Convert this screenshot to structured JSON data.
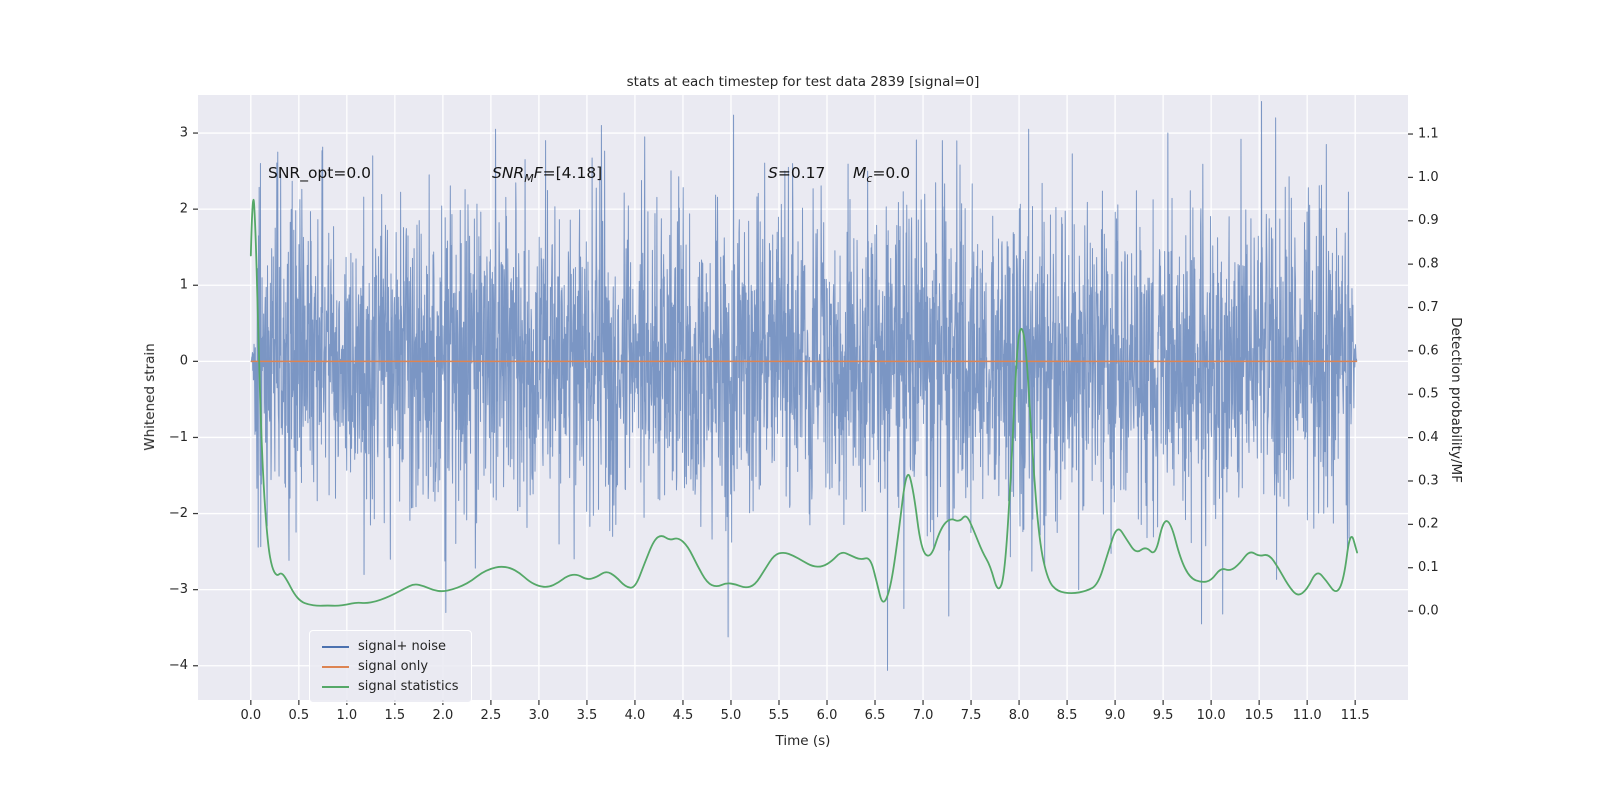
{
  "annotations": {
    "snr_opt": "SNR_opt=0.0",
    "snr_mf_prefix": "SNR",
    "snr_mf_sub": "M",
    "snr_mf_mid": "F",
    "snr_mf_value": "=[4.18]",
    "s_label": "S",
    "s_value": "=0.17",
    "mc_label": "M",
    "mc_sub": "c",
    "mc_value": "=0.0"
  },
  "chart_data": {
    "type": "line",
    "title": "stats at each timestep for test data 2839 [signal=0]",
    "xlabel": "Time (s)",
    "ylabel_left": "Whitened strain",
    "ylabel_right": "Detection probability/MF",
    "xlim": [
      -0.55,
      12.05
    ],
    "ylim_left": [
      -4.45,
      3.5
    ],
    "ylim_right": [
      -0.205,
      1.19
    ],
    "background": "#eaeaf2",
    "grid": true,
    "grid_color": "#ffffff",
    "tick_color": "#262626",
    "legend_position": "lower left",
    "x_ticks": [
      0,
      0.5,
      1,
      1.5,
      2,
      2.5,
      3,
      3.5,
      4,
      4.5,
      5,
      5.5,
      6,
      6.5,
      7,
      7.5,
      8,
      8.5,
      9,
      9.5,
      10,
      10.5,
      11,
      11.5
    ],
    "x_tick_labels": [
      "0.0",
      "0.5",
      "1.0",
      "1.5",
      "2.0",
      "2.5",
      "3.0",
      "3.5",
      "4.0",
      "4.5",
      "5.0",
      "5.5",
      "6.0",
      "6.5",
      "7.0",
      "7.5",
      "8.0",
      "8.5",
      "9.0",
      "9.5",
      "10.0",
      "10.5",
      "11.0",
      "11.5"
    ],
    "left_ticks": [
      3,
      2,
      1,
      0,
      -1,
      -2,
      -3,
      -4
    ],
    "left_tick_labels": [
      "3",
      "2",
      "1",
      "0",
      "−1",
      "−2",
      "−3",
      "−4"
    ],
    "right_ticks": [
      1.1,
      1.0,
      0.9,
      0.8,
      0.7,
      0.6,
      0.5,
      0.4,
      0.3,
      0.2,
      0.1,
      0.0
    ],
    "right_tick_labels": [
      "1.1",
      "1.0",
      "0.9",
      "0.8",
      "0.7",
      "0.6",
      "0.5",
      "0.4",
      "0.3",
      "0.2",
      "0.1",
      "0.0"
    ],
    "series": [
      {
        "name": "signal+ noise",
        "axis": "left",
        "color": "#4c72b0",
        "alpha": 0.7,
        "render": "generated_noise",
        "noise": {
          "seed": 2839,
          "n": 3450,
          "std": 1.0,
          "x_start": 0.0,
          "x_end": 11.52,
          "taper": 0.08
        },
        "spikes": [
          [
            0.1,
            2.6
          ],
          [
            0.28,
            2.75
          ],
          [
            2.03,
            -3.3
          ],
          [
            2.55,
            3.05
          ],
          [
            3.07,
            2.9
          ],
          [
            3.65,
            3.1
          ],
          [
            4.1,
            2.95
          ],
          [
            4.97,
            -3.62
          ],
          [
            6.63,
            -4.06
          ],
          [
            7.2,
            2.9
          ],
          [
            8.1,
            3.05
          ],
          [
            8.62,
            -3.0
          ],
          [
            9.55,
            3.0
          ],
          [
            9.9,
            -3.45
          ],
          [
            10.12,
            -3.32
          ],
          [
            10.67,
            3.2
          ],
          [
            11.2,
            2.85
          ]
        ]
      },
      {
        "name": "signal only",
        "axis": "left",
        "color": "#dd8452",
        "render": "constant",
        "value": 0.0,
        "x_start": 0.0,
        "x_end": 11.52
      },
      {
        "name": "signal statistics",
        "axis": "right",
        "color": "#55a868",
        "render": "points",
        "points": [
          [
            0.0,
            0.82
          ],
          [
            0.02,
            0.99
          ],
          [
            0.05,
            0.88
          ],
          [
            0.08,
            0.62
          ],
          [
            0.11,
            0.4
          ],
          [
            0.14,
            0.26
          ],
          [
            0.18,
            0.15
          ],
          [
            0.22,
            0.1
          ],
          [
            0.27,
            0.08
          ],
          [
            0.32,
            0.09
          ],
          [
            0.38,
            0.07
          ],
          [
            0.45,
            0.04
          ],
          [
            0.52,
            0.022
          ],
          [
            0.6,
            0.015
          ],
          [
            0.7,
            0.012
          ],
          [
            0.8,
            0.013
          ],
          [
            0.9,
            0.012
          ],
          [
            1.0,
            0.015
          ],
          [
            1.1,
            0.02
          ],
          [
            1.2,
            0.018
          ],
          [
            1.3,
            0.022
          ],
          [
            1.4,
            0.03
          ],
          [
            1.5,
            0.04
          ],
          [
            1.6,
            0.052
          ],
          [
            1.7,
            0.063
          ],
          [
            1.8,
            0.058
          ],
          [
            1.9,
            0.048
          ],
          [
            2.0,
            0.045
          ],
          [
            2.1,
            0.05
          ],
          [
            2.2,
            0.058
          ],
          [
            2.3,
            0.07
          ],
          [
            2.4,
            0.088
          ],
          [
            2.5,
            0.098
          ],
          [
            2.6,
            0.103
          ],
          [
            2.7,
            0.1
          ],
          [
            2.8,
            0.088
          ],
          [
            2.9,
            0.068
          ],
          [
            3.0,
            0.057
          ],
          [
            3.1,
            0.055
          ],
          [
            3.2,
            0.065
          ],
          [
            3.3,
            0.082
          ],
          [
            3.4,
            0.085
          ],
          [
            3.5,
            0.072
          ],
          [
            3.6,
            0.078
          ],
          [
            3.7,
            0.093
          ],
          [
            3.8,
            0.08
          ],
          [
            3.9,
            0.056
          ],
          [
            4.0,
            0.052
          ],
          [
            4.1,
            0.11
          ],
          [
            4.2,
            0.165
          ],
          [
            4.28,
            0.176
          ],
          [
            4.36,
            0.163
          ],
          [
            4.45,
            0.17
          ],
          [
            4.55,
            0.15
          ],
          [
            4.65,
            0.105
          ],
          [
            4.75,
            0.065
          ],
          [
            4.85,
            0.055
          ],
          [
            4.95,
            0.065
          ],
          [
            5.05,
            0.062
          ],
          [
            5.15,
            0.053
          ],
          [
            5.25,
            0.06
          ],
          [
            5.35,
            0.095
          ],
          [
            5.45,
            0.13
          ],
          [
            5.55,
            0.136
          ],
          [
            5.65,
            0.128
          ],
          [
            5.75,
            0.115
          ],
          [
            5.85,
            0.103
          ],
          [
            5.95,
            0.102
          ],
          [
            6.05,
            0.115
          ],
          [
            6.15,
            0.138
          ],
          [
            6.25,
            0.128
          ],
          [
            6.35,
            0.118
          ],
          [
            6.45,
            0.125
          ],
          [
            6.52,
            0.065
          ],
          [
            6.58,
            0.01
          ],
          [
            6.66,
            0.05
          ],
          [
            6.74,
            0.17
          ],
          [
            6.83,
            0.335
          ],
          [
            6.9,
            0.28
          ],
          [
            6.98,
            0.14
          ],
          [
            7.08,
            0.12
          ],
          [
            7.18,
            0.19
          ],
          [
            7.28,
            0.215
          ],
          [
            7.38,
            0.205
          ],
          [
            7.45,
            0.225
          ],
          [
            7.53,
            0.185
          ],
          [
            7.62,
            0.135
          ],
          [
            7.7,
            0.105
          ],
          [
            7.78,
            0.04
          ],
          [
            7.85,
            0.08
          ],
          [
            7.92,
            0.33
          ],
          [
            7.98,
            0.62
          ],
          [
            8.03,
            0.665
          ],
          [
            8.08,
            0.59
          ],
          [
            8.14,
            0.36
          ],
          [
            8.21,
            0.16
          ],
          [
            8.3,
            0.07
          ],
          [
            8.4,
            0.045
          ],
          [
            8.55,
            0.04
          ],
          [
            8.7,
            0.046
          ],
          [
            8.82,
            0.06
          ],
          [
            8.92,
            0.13
          ],
          [
            9.02,
            0.2
          ],
          [
            9.12,
            0.165
          ],
          [
            9.22,
            0.132
          ],
          [
            9.32,
            0.15
          ],
          [
            9.42,
            0.126
          ],
          [
            9.5,
            0.21
          ],
          [
            9.58,
            0.205
          ],
          [
            9.68,
            0.12
          ],
          [
            9.78,
            0.076
          ],
          [
            9.9,
            0.066
          ],
          [
            10.0,
            0.07
          ],
          [
            10.1,
            0.1
          ],
          [
            10.2,
            0.092
          ],
          [
            10.3,
            0.11
          ],
          [
            10.4,
            0.14
          ],
          [
            10.5,
            0.126
          ],
          [
            10.6,
            0.132
          ],
          [
            10.7,
            0.1
          ],
          [
            10.8,
            0.06
          ],
          [
            10.9,
            0.033
          ],
          [
            11.0,
            0.05
          ],
          [
            11.1,
            0.095
          ],
          [
            11.2,
            0.07
          ],
          [
            11.3,
            0.038
          ],
          [
            11.38,
            0.07
          ],
          [
            11.45,
            0.19
          ],
          [
            11.52,
            0.135
          ]
        ]
      }
    ]
  }
}
